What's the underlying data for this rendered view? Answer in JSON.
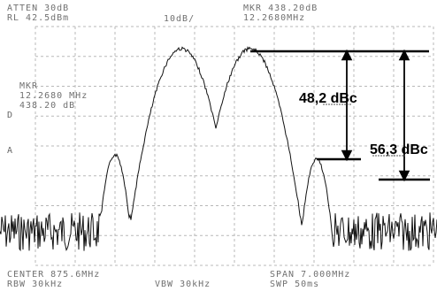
{
  "analyzer": {
    "header_left": [
      "ATTEN 30dB",
      "RL 42.5dBm"
    ],
    "header_mid": "10dB/",
    "header_right": [
      "MKR 438.20dB",
      "12.2680MHz"
    ],
    "marker_box": [
      "MKR",
      "12.2680 MHz",
      "438.20 dB"
    ],
    "side_labels": [
      "D",
      "A"
    ],
    "footer_left": [
      "CENTER 875.6MHz",
      "RBW 30kHz"
    ],
    "footer_mid": "VBW 30kHz",
    "footer_right": [
      "SPAN 7.000MHz",
      "SWP 50ms"
    ]
  },
  "annotations": {
    "near_level": "48,2 dBc",
    "far_level": "56,3 dBc"
  }
}
